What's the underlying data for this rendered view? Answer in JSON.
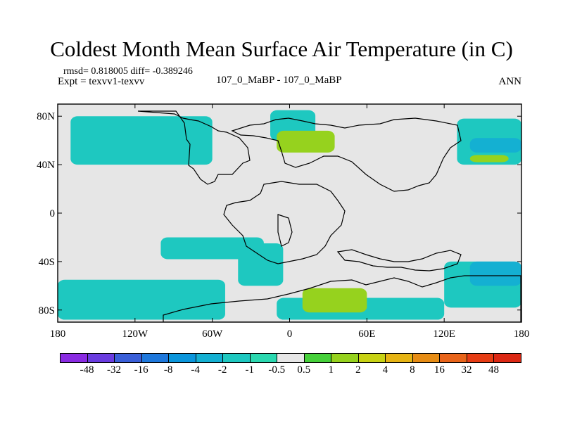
{
  "title": "Coldest Month Mean Surface Air Temperature (in C)",
  "stats": "rmsd= 0.818005 diff= -0.389246",
  "expt": "Expt = texvv1-texvv",
  "subtitle": "107_0_MaBP - 107_0_MaBP",
  "season": "ANN",
  "chart_data": {
    "type": "heatmap",
    "title": "Coldest Month Mean Surface Air Temperature (in C)",
    "xlabel": "",
    "ylabel": "",
    "xlim": [
      -180,
      180
    ],
    "ylim": [
      -90,
      90
    ],
    "x_ticks": [
      {
        "value": -180,
        "label": "180"
      },
      {
        "value": -120,
        "label": "120W"
      },
      {
        "value": -60,
        "label": "60W"
      },
      {
        "value": 0,
        "label": "0"
      },
      {
        "value": 60,
        "label": "60E"
      },
      {
        "value": 120,
        "label": "120E"
      },
      {
        "value": 180,
        "label": "180"
      }
    ],
    "y_ticks": [
      {
        "value": 80,
        "label": "80N"
      },
      {
        "value": 40,
        "label": "40N"
      },
      {
        "value": 0,
        "label": "0"
      },
      {
        "value": -40,
        "label": "40S"
      },
      {
        "value": -80,
        "label": "80S"
      }
    ],
    "colorbar": {
      "labels": [
        "-48",
        "-32",
        "-16",
        "-8",
        "-4",
        "-2",
        "-1",
        "-0.5",
        "0.5",
        "1",
        "2",
        "4",
        "8",
        "16",
        "32",
        "48"
      ],
      "colors": [
        "#8a2be2",
        "#6a3ce0",
        "#3a5fd8",
        "#1e78dc",
        "#0b96dc",
        "#14b0d2",
        "#1ec8c0",
        "#2bd8b0",
        "#e6e6e6",
        "#46d03a",
        "#96d21e",
        "#c8d214",
        "#e6b414",
        "#e68c14",
        "#e8641a",
        "#e63c14",
        "#dc2814"
      ]
    },
    "regions": [
      {
        "level": "-2",
        "color": "#14b0d2",
        "lon": [
          -178,
          -100
        ],
        "lat": [
          -84,
          -66
        ]
      },
      {
        "level": "-1",
        "color": "#1ec8c0",
        "lon": [
          -180,
          -50
        ],
        "lat": [
          -88,
          -55
        ]
      },
      {
        "level": "-1",
        "color": "#1ec8c0",
        "lon": [
          -100,
          -20
        ],
        "lat": [
          -38,
          -20
        ]
      },
      {
        "level": "-1",
        "color": "#1ec8c0",
        "lon": [
          -40,
          -5
        ],
        "lat": [
          -60,
          -25
        ]
      },
      {
        "level": "-1",
        "color": "#1ec8c0",
        "lon": [
          120,
          180
        ],
        "lat": [
          -78,
          -40
        ]
      },
      {
        "level": "-1",
        "color": "#1ec8c0",
        "lon": [
          -170,
          -60
        ],
        "lat": [
          40,
          80
        ]
      },
      {
        "level": "-1",
        "color": "#1ec8c0",
        "lon": [
          130,
          180
        ],
        "lat": [
          40,
          78
        ]
      },
      {
        "level": "-1",
        "color": "#1ec8c0",
        "lon": [
          -15,
          20
        ],
        "lat": [
          60,
          85
        ]
      },
      {
        "level": "-1",
        "color": "#1ec8c0",
        "lon": [
          -10,
          120
        ],
        "lat": [
          -88,
          -70
        ]
      },
      {
        "level": "-2",
        "color": "#14b0d2",
        "lon": [
          140,
          180
        ],
        "lat": [
          -60,
          -40
        ]
      },
      {
        "level": "-2",
        "color": "#14b0d2",
        "lon": [
          140,
          180
        ],
        "lat": [
          50,
          62
        ]
      },
      {
        "level": "1",
        "color": "#96d21e",
        "lon": [
          -10,
          35
        ],
        "lat": [
          50,
          68
        ]
      },
      {
        "level": "1",
        "color": "#96d21e",
        "lon": [
          10,
          60
        ],
        "lat": [
          -82,
          -62
        ]
      },
      {
        "level": "1",
        "color": "#96d21e",
        "lon": [
          140,
          170
        ],
        "lat": [
          42,
          48
        ]
      }
    ]
  }
}
